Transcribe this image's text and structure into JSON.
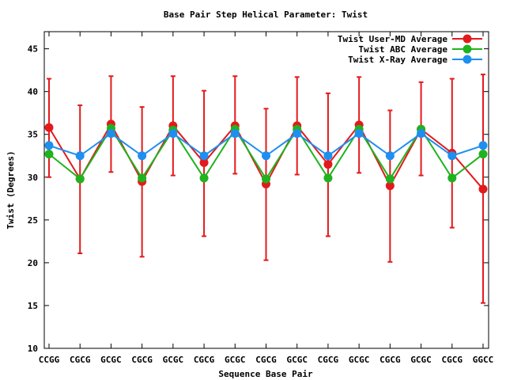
{
  "chart_data": {
    "type": "line",
    "title": "Base Pair Step Helical Parameter: Twist",
    "xlabel": "Sequence Base Pair",
    "ylabel": "Twist (Degrees)",
    "categories": [
      "CCGG",
      "CGCG",
      "GCGC",
      "CGCG",
      "GCGC",
      "CGCG",
      "GCGC",
      "CGCG",
      "GCGC",
      "CGCG",
      "GCGC",
      "CGCG",
      "GCGC",
      "CGCG",
      "GGCC"
    ],
    "ylim": [
      10,
      47
    ],
    "yticks": [
      10,
      15,
      20,
      25,
      30,
      35,
      40,
      45
    ],
    "grid": false,
    "legend_position": "top-right",
    "series": [
      {
        "name": "Twist User-MD Average",
        "color": "#e31a1c",
        "values": [
          35.8,
          29.8,
          36.2,
          29.5,
          36.0,
          31.7,
          36.0,
          29.2,
          36.0,
          31.5,
          36.1,
          29.0,
          35.6,
          32.8,
          28.6
        ],
        "error_low": [
          30.0,
          21.1,
          30.6,
          20.7,
          30.2,
          23.1,
          30.4,
          20.3,
          30.3,
          23.1,
          30.5,
          20.1,
          30.2,
          24.1,
          15.3
        ],
        "error_high": [
          41.5,
          38.4,
          41.8,
          38.2,
          41.8,
          40.1,
          41.8,
          38.0,
          41.7,
          39.8,
          41.7,
          37.8,
          41.1,
          41.5,
          42.0
        ]
      },
      {
        "name": "Twist ABC Average",
        "color": "#1fb31f",
        "values": [
          32.7,
          29.8,
          35.7,
          29.9,
          35.5,
          29.9,
          35.6,
          29.8,
          35.6,
          29.9,
          35.6,
          29.8,
          35.6,
          29.9,
          32.7
        ]
      },
      {
        "name": "Twist X-Ray Average",
        "color": "#1e8ff0",
        "values": [
          33.7,
          32.5,
          35.1,
          32.5,
          35.1,
          32.5,
          35.1,
          32.5,
          35.1,
          32.5,
          35.1,
          32.5,
          35.1,
          32.5,
          33.7
        ]
      }
    ]
  }
}
